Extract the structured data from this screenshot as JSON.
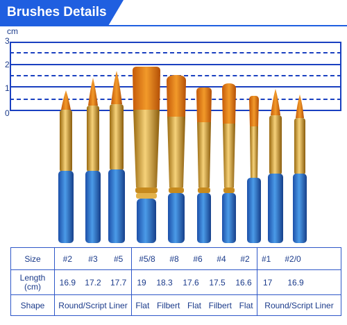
{
  "header": {
    "title": "Brushes Details"
  },
  "ruler": {
    "unit": "cm",
    "ticks": [
      "3",
      "2",
      "1",
      "0"
    ]
  },
  "table": {
    "row_labels": {
      "size": "Size",
      "length_line1": "Length",
      "length_line2": "(cm)",
      "shape": "Shape"
    },
    "groups": [
      {
        "sizes": [
          "#2",
          "#3",
          "#5"
        ],
        "lengths": [
          "16.9",
          "17.2",
          "17.7"
        ],
        "shapes": [
          "Round/Script Liner"
        ]
      },
      {
        "sizes": [
          "#5/8",
          "#8",
          "#6",
          "#4",
          "#2"
        ],
        "lengths": [
          "19",
          "18.3",
          "17.6",
          "17.5",
          "16.6"
        ],
        "shapes": [
          "Flat",
          "Filbert",
          "Flat",
          "Filbert",
          "Flat"
        ]
      },
      {
        "sizes": [
          "#1",
          "#2/0"
        ],
        "lengths": [
          "17",
          "16.9"
        ],
        "shapes": [
          "Round/Script Liner"
        ]
      }
    ]
  },
  "colors": {
    "accent": "#1f5fe0",
    "line": "#1a40c0",
    "handle": "#2e6fd0",
    "ferrule": "#d8a028",
    "bristle": "#e07a12"
  }
}
